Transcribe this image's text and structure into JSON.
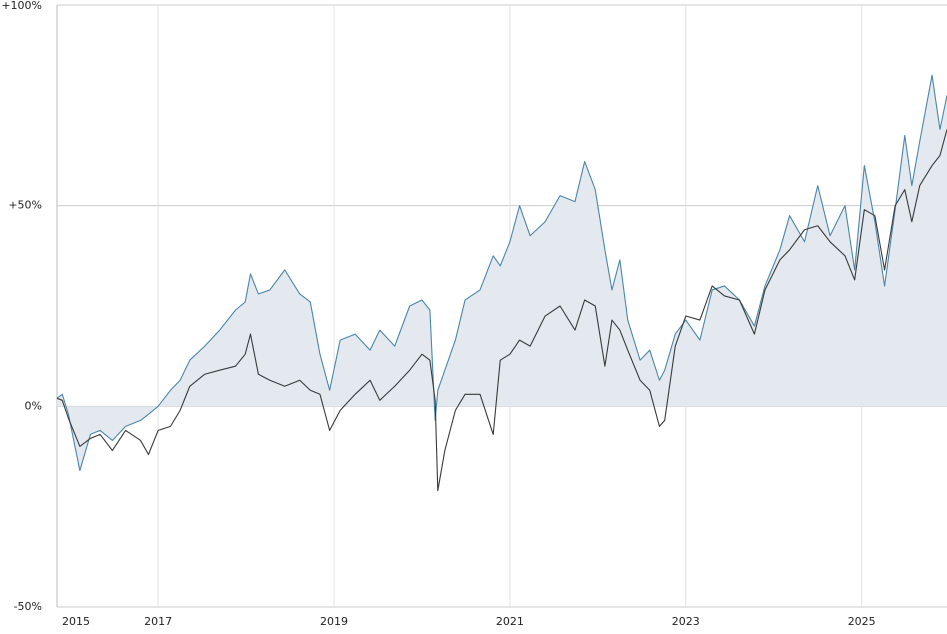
{
  "chart_data": {
    "type": "line",
    "x": [
      2015.85,
      2015.91,
      2015.98,
      2016.11,
      2016.23,
      2016.34,
      2016.48,
      2016.63,
      2016.8,
      2016.89,
      2017.0,
      2017.14,
      2017.25,
      2017.36,
      2017.53,
      2017.7,
      2017.88,
      2017.99,
      2018.05,
      2018.14,
      2018.27,
      2018.44,
      2018.61,
      2018.73,
      2018.84,
      2018.95,
      2019.07,
      2019.24,
      2019.41,
      2019.52,
      2019.69,
      2019.86,
      2020.0,
      2020.09,
      2020.15,
      2020.18,
      2020.26,
      2020.38,
      2020.49,
      2020.66,
      2020.81,
      2020.89,
      2021.0,
      2021.11,
      2021.23,
      2021.4,
      2021.57,
      2021.74,
      2021.85,
      2021.97,
      2022.08,
      2022.16,
      2022.25,
      2022.34,
      2022.48,
      2022.59,
      2022.7,
      2022.76,
      2022.88,
      2023.0,
      2023.16,
      2023.3,
      2023.44,
      2023.61,
      2023.78,
      2023.9,
      2024.07,
      2024.18,
      2024.35,
      2024.5,
      2024.64,
      2024.81,
      2024.92,
      2025.03,
      2025.15,
      2025.26,
      2025.38,
      2025.49,
      2025.57,
      2025.66,
      2025.8,
      2025.89,
      2025.97
    ],
    "series": [
      {
        "color": "#4a86aa",
        "area": true,
        "area_color": "#e3e9ee",
        "values": [
          2,
          3,
          -2,
          -16,
          -7,
          -6,
          -8.5,
          -5,
          -3.5,
          -2,
          0,
          4,
          6.5,
          11.5,
          15,
          19,
          24,
          26,
          33,
          28,
          29,
          34,
          28,
          26,
          13,
          4,
          16.5,
          18,
          14,
          19,
          15,
          25,
          26.5,
          24,
          -3.5,
          4,
          9,
          16.5,
          26.5,
          29,
          37.5,
          35,
          41,
          50,
          42.5,
          46,
          52.5,
          51,
          61,
          54,
          39,
          29,
          36.5,
          21.5,
          11.5,
          14,
          6.5,
          9,
          18,
          21.5,
          16.5,
          29,
          30,
          26.5,
          20,
          30,
          39,
          47.5,
          41,
          55,
          42.5,
          50,
          34,
          60,
          46,
          30,
          49,
          67.5,
          55,
          66,
          82.5,
          69,
          77.5
        ]
      },
      {
        "color": "#3a3a3a",
        "values": [
          2,
          1.5,
          -3,
          -10,
          -8,
          -7,
          -11,
          -6,
          -8.5,
          -12,
          -6,
          -5,
          -1,
          5,
          8,
          9,
          10,
          13,
          18,
          8,
          6.5,
          5,
          6.5,
          4,
          3,
          -6,
          -1,
          3,
          6.5,
          1.5,
          5,
          9,
          13,
          11.5,
          1.5,
          -21,
          -11,
          -1,
          3,
          3,
          -7,
          11.5,
          13,
          16.5,
          15,
          22.5,
          25,
          19,
          26.5,
          25,
          10,
          21.5,
          19,
          14,
          6.5,
          4,
          -5,
          -3.5,
          15,
          22.5,
          21.5,
          30,
          27.5,
          26.5,
          18,
          29,
          36.5,
          39,
          44,
          45,
          41,
          37.5,
          31.5,
          49,
          47.5,
          34,
          50,
          54,
          46,
          55,
          60,
          62.5,
          69
        ]
      }
    ],
    "xlim": [
      2015.85,
      2025.97
    ],
    "xticks": [
      {
        "value": 2015.85,
        "label": "2015"
      },
      2017,
      2019,
      2021,
      2023,
      2025
    ],
    "ylim": [
      -50,
      100
    ],
    "yticks": [
      {
        "value": -50,
        "label": "-50%"
      },
      {
        "value": 0,
        "label": "0%"
      },
      {
        "value": 50,
        "label": "+50%"
      },
      {
        "value": 100,
        "label": "+100%"
      }
    ],
    "grid": true
  }
}
